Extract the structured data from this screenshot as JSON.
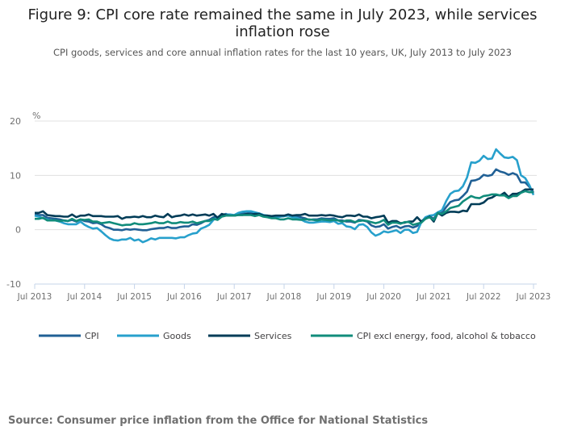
{
  "chart_data": {
    "type": "line",
    "title": "Figure 9: CPI core rate remained the same in July 2023, while services inflation rose",
    "subtitle": "CPI goods, services and core annual inflation rates for the last 10 years, UK, July 2013 to July 2023",
    "ylabel": "%",
    "ylim": [
      -10,
      20
    ],
    "yticks": [
      "20",
      "10",
      "0",
      "-10"
    ],
    "yticks_values": [
      20,
      10,
      0,
      -10
    ],
    "xticks": [
      "Jul 2013",
      "Jul 2014",
      "Jul 2015",
      "Jul 2016",
      "Jul 2017",
      "Jul 2018",
      "Jul 2019",
      "Jul 2020",
      "Jul 2021",
      "Jul 2022",
      "Jul 2023"
    ],
    "x_start": "Jul 2013",
    "x_end": "Jul 2023",
    "frequency": "monthly",
    "grid": true,
    "legend_position": "bottom",
    "series": [
      {
        "name": "CPI",
        "color": "#206095",
        "values": [
          2.8,
          2.7,
          2.7,
          2.2,
          2.1,
          2.0,
          1.9,
          1.7,
          1.6,
          1.8,
          1.5,
          1.9,
          1.6,
          1.5,
          1.2,
          1.3,
          1.0,
          0.5,
          0.3,
          0.0,
          0.0,
          -0.1,
          0.1,
          0.0,
          0.1,
          0.0,
          -0.1,
          -0.1,
          0.1,
          0.2,
          0.3,
          0.3,
          0.5,
          0.3,
          0.3,
          0.5,
          0.6,
          0.6,
          1.0,
          0.9,
          1.2,
          1.6,
          1.8,
          2.3,
          2.3,
          2.7,
          2.9,
          2.6,
          2.6,
          2.9,
          3.0,
          3.0,
          3.1,
          3.0,
          3.0,
          2.7,
          2.5,
          2.4,
          2.4,
          2.4,
          2.5,
          2.7,
          2.4,
          2.4,
          2.3,
          2.1,
          1.8,
          1.9,
          1.9,
          2.1,
          2.0,
          2.0,
          2.1,
          1.7,
          1.7,
          1.5,
          1.5,
          1.3,
          1.8,
          1.7,
          1.5,
          0.8,
          0.5,
          0.6,
          1.0,
          0.2,
          0.5,
          0.7,
          0.3,
          0.6,
          0.7,
          0.4,
          0.7,
          1.5,
          2.1,
          2.5,
          2.0,
          3.2,
          3.1,
          4.2,
          5.1,
          5.4,
          5.5,
          6.2,
          7.0,
          9.0,
          9.1,
          9.4,
          10.1,
          9.9,
          10.1,
          11.1,
          10.7,
          10.5,
          10.1,
          10.4,
          10.1,
          8.7,
          8.7,
          7.9,
          6.8
        ]
      },
      {
        "name": "Goods",
        "color": "#27a0cc",
        "values": [
          2.6,
          2.4,
          2.1,
          1.9,
          1.7,
          1.7,
          1.5,
          1.2,
          1.0,
          1.0,
          1.0,
          1.5,
          0.9,
          0.5,
          0.2,
          0.3,
          -0.3,
          -1.0,
          -1.6,
          -1.9,
          -2.0,
          -1.8,
          -1.8,
          -1.5,
          -2.0,
          -1.8,
          -2.3,
          -2.0,
          -1.6,
          -1.8,
          -1.5,
          -1.5,
          -1.5,
          -1.5,
          -1.6,
          -1.4,
          -1.4,
          -1.0,
          -0.7,
          -0.6,
          0.2,
          0.5,
          0.9,
          1.8,
          2.3,
          2.5,
          2.8,
          2.8,
          2.7,
          3.1,
          3.3,
          3.4,
          3.4,
          3.2,
          3.0,
          2.7,
          2.6,
          2.4,
          2.3,
          2.4,
          2.5,
          2.6,
          2.3,
          2.2,
          1.9,
          1.5,
          1.3,
          1.3,
          1.4,
          1.5,
          1.5,
          1.4,
          1.6,
          1.1,
          1.2,
          0.6,
          0.5,
          0.1,
          0.9,
          1.0,
          0.5,
          -0.5,
          -1.1,
          -0.8,
          -0.3,
          -0.5,
          -0.3,
          -0.1,
          -0.6,
          0.0,
          0.0,
          -0.6,
          -0.4,
          1.4,
          2.3,
          2.6,
          2.7,
          3.2,
          3.6,
          5.3,
          6.6,
          7.1,
          7.2,
          8.0,
          9.6,
          12.4,
          12.3,
          12.7,
          13.6,
          13.0,
          13.1,
          14.8,
          14.0,
          13.3,
          13.2,
          13.4,
          12.8,
          10.0,
          9.5,
          8.2,
          6.4
        ]
      },
      {
        "name": "Services",
        "color": "#003c57",
        "values": [
          3.1,
          3.1,
          3.4,
          2.7,
          2.6,
          2.5,
          2.5,
          2.4,
          2.4,
          2.8,
          2.3,
          2.6,
          2.6,
          2.8,
          2.5,
          2.5,
          2.5,
          2.4,
          2.4,
          2.4,
          2.5,
          2.0,
          2.3,
          2.3,
          2.4,
          2.3,
          2.5,
          2.3,
          2.3,
          2.6,
          2.4,
          2.3,
          2.9,
          2.3,
          2.5,
          2.6,
          2.8,
          2.6,
          2.8,
          2.6,
          2.7,
          2.8,
          2.6,
          2.9,
          2.2,
          2.9,
          2.7,
          2.6,
          2.6,
          2.7,
          2.7,
          2.9,
          2.8,
          2.9,
          2.9,
          2.6,
          2.6,
          2.5,
          2.6,
          2.6,
          2.6,
          2.8,
          2.6,
          2.7,
          2.7,
          2.9,
          2.6,
          2.6,
          2.6,
          2.7,
          2.6,
          2.7,
          2.6,
          2.4,
          2.3,
          2.6,
          2.6,
          2.5,
          2.8,
          2.4,
          2.4,
          2.1,
          2.3,
          2.4,
          2.6,
          1.3,
          1.6,
          1.6,
          1.2,
          1.3,
          1.5,
          1.5,
          2.3,
          1.5,
          2.0,
          2.4,
          1.5,
          3.1,
          2.6,
          3.1,
          3.3,
          3.3,
          3.2,
          3.5,
          3.4,
          4.7,
          4.7,
          4.7,
          5.0,
          5.7,
          5.9,
          6.4,
          6.3,
          6.8,
          6.0,
          6.6,
          6.6,
          6.9,
          7.4,
          7.4,
          7.4
        ]
      },
      {
        "name": "CPI excl energy, food, alcohol & tobacco",
        "color": "#118c7b",
        "values": [
          2.0,
          2.0,
          2.2,
          1.7,
          1.7,
          1.7,
          1.6,
          1.7,
          1.6,
          2.0,
          1.6,
          1.9,
          1.8,
          1.9,
          1.5,
          1.5,
          1.2,
          1.3,
          1.4,
          1.2,
          1.0,
          0.8,
          0.9,
          0.9,
          1.2,
          1.0,
          1.0,
          1.1,
          1.2,
          1.4,
          1.2,
          1.2,
          1.5,
          1.2,
          1.2,
          1.4,
          1.3,
          1.3,
          1.5,
          1.2,
          1.4,
          1.6,
          1.6,
          2.0,
          1.8,
          2.4,
          2.6,
          2.6,
          2.6,
          2.7,
          2.7,
          2.7,
          2.7,
          2.5,
          2.7,
          2.4,
          2.3,
          2.1,
          2.1,
          1.9,
          1.9,
          2.1,
          1.9,
          1.9,
          1.8,
          1.9,
          1.9,
          1.8,
          1.7,
          1.9,
          1.8,
          1.7,
          1.8,
          1.7,
          1.5,
          1.7,
          1.7,
          1.4,
          1.6,
          1.7,
          1.6,
          1.4,
          1.2,
          1.4,
          1.8,
          0.9,
          1.3,
          1.3,
          1.1,
          1.4,
          1.4,
          0.9,
          1.1,
          1.3,
          2.0,
          2.3,
          1.8,
          3.1,
          2.9,
          3.4,
          4.0,
          4.2,
          4.4,
          5.2,
          5.7,
          6.2,
          5.9,
          5.8,
          6.2,
          6.3,
          6.5,
          6.5,
          6.3,
          6.3,
          5.8,
          6.2,
          6.2,
          6.8,
          7.1,
          6.9,
          6.9
        ]
      }
    ],
    "source": "Source: Consumer price inflation from the Office for National Statistics"
  }
}
